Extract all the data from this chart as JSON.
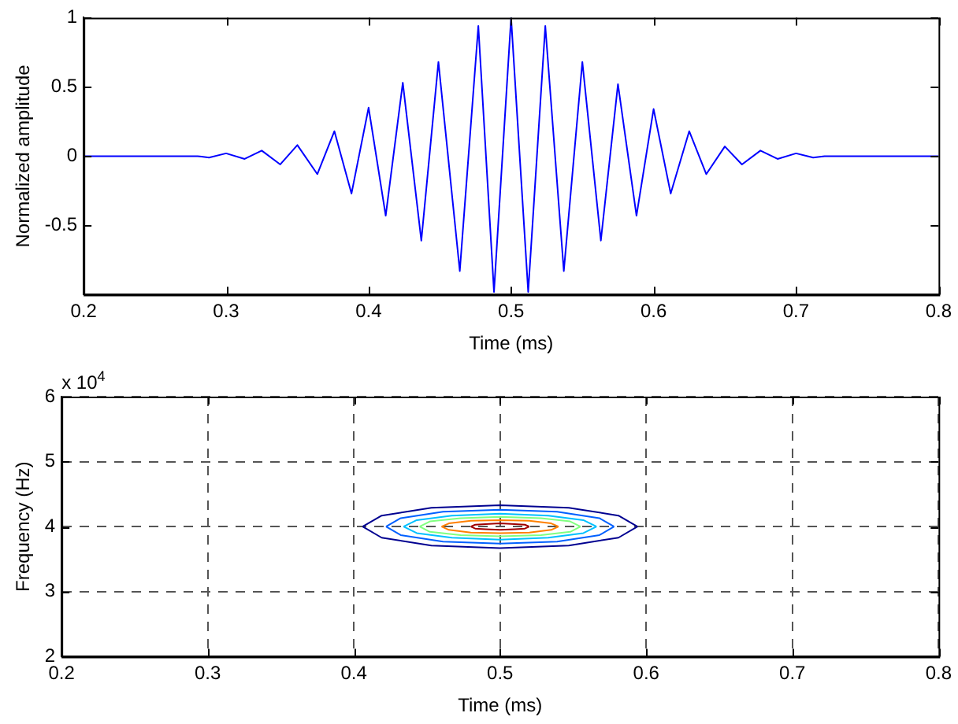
{
  "chart_data": [
    {
      "type": "line",
      "xlabel": "Time (ms)",
      "ylabel": "Normalized amplitude",
      "xlim": [
        0.2,
        0.8
      ],
      "xticks": [
        0.2,
        0.3,
        0.4,
        0.5,
        0.6,
        0.7,
        0.8
      ],
      "ylim": [
        -1,
        1
      ],
      "yticks": [
        -0.5,
        0,
        0.5,
        1
      ],
      "grid": false,
      "legend": false,
      "marker": "none",
      "line_style": "solid",
      "series": [
        {
          "color": "#0000ff",
          "x": [
            0.2,
            0.28,
            0.288,
            0.3,
            0.313,
            0.325,
            0.338,
            0.35,
            0.364,
            0.376,
            0.388,
            0.4,
            0.412,
            0.424,
            0.437,
            0.449,
            0.464,
            0.477,
            0.488,
            0.5,
            0.512,
            0.524,
            0.537,
            0.55,
            0.563,
            0.575,
            0.588,
            0.6,
            0.612,
            0.625,
            0.637,
            0.65,
            0.662,
            0.675,
            0.687,
            0.7,
            0.712,
            0.72,
            0.8
          ],
          "values": [
            0,
            0,
            -0.01,
            0.02,
            -0.02,
            0.04,
            -0.06,
            0.08,
            -0.13,
            0.18,
            -0.27,
            0.35,
            -0.43,
            0.53,
            -0.61,
            0.68,
            -0.83,
            0.94,
            -0.98,
            1,
            -0.98,
            0.94,
            -0.83,
            0.68,
            -0.61,
            0.52,
            -0.43,
            0.34,
            -0.27,
            0.18,
            -0.13,
            0.07,
            -0.06,
            0.04,
            -0.02,
            0.02,
            -0.01,
            0,
            0
          ]
        }
      ]
    },
    {
      "type": "line",
      "xlabel": "Time (ms)",
      "ylabel": "Frequency (Hz)",
      "annotations": [
        "x 10$^{4}$"
      ],
      "xlim": [
        0.2,
        0.8
      ],
      "xticks": [
        0.2,
        0.3,
        0.4,
        0.5,
        0.6,
        0.7,
        0.8
      ],
      "ylim": [
        2,
        6
      ],
      "yticks": [
        2,
        3,
        4,
        5,
        6
      ],
      "grid": true,
      "legend": false,
      "marker": "none",
      "line_style": "solid",
      "series": [
        {
          "color": "#000090",
          "x": [
            0.406,
            0.419,
            0.453,
            0.5,
            0.547,
            0.581,
            0.594
          ],
          "values": [
            4,
            4.17,
            4.29,
            4.33,
            4.29,
            4.17,
            4
          ]
        },
        {
          "color": "#000090",
          "x": [
            0.406,
            0.419,
            0.453,
            0.5,
            0.547,
            0.581,
            0.594
          ],
          "values": [
            4,
            3.83,
            3.71,
            3.67,
            3.71,
            3.83,
            4
          ]
        },
        {
          "color": "#0060ff",
          "x": [
            0.422,
            0.432,
            0.461,
            0.5,
            0.539,
            0.568,
            0.578
          ],
          "values": [
            4,
            4.13,
            4.23,
            4.26,
            4.23,
            4.13,
            4
          ]
        },
        {
          "color": "#0060ff",
          "x": [
            0.422,
            0.432,
            0.461,
            0.5,
            0.539,
            0.568,
            0.578
          ],
          "values": [
            4,
            3.87,
            3.77,
            3.74,
            3.77,
            3.87,
            4
          ]
        },
        {
          "color": "#00c0ff",
          "x": [
            0.434,
            0.443,
            0.467,
            0.5,
            0.533,
            0.557,
            0.566
          ],
          "values": [
            4,
            4.1,
            4.17,
            4.2,
            4.17,
            4.1,
            4
          ]
        },
        {
          "color": "#00c0ff",
          "x": [
            0.434,
            0.443,
            0.467,
            0.5,
            0.533,
            0.557,
            0.566
          ],
          "values": [
            4,
            3.9,
            3.83,
            3.8,
            3.83,
            3.9,
            4
          ]
        },
        {
          "color": "#80ff80",
          "x": [
            0.445,
            0.452,
            0.473,
            0.5,
            0.528,
            0.548,
            0.555
          ],
          "values": [
            4,
            4.08,
            4.13,
            4.15,
            4.13,
            4.08,
            4
          ]
        },
        {
          "color": "#80ff80",
          "x": [
            0.445,
            0.452,
            0.473,
            0.5,
            0.528,
            0.548,
            0.555
          ],
          "values": [
            4,
            3.92,
            3.87,
            3.85,
            3.87,
            3.92,
            4
          ]
        },
        {
          "color": "#ff8000",
          "x": [
            0.46,
            0.465,
            0.48,
            0.5,
            0.52,
            0.535,
            0.54
          ],
          "values": [
            4,
            4.05,
            4.09,
            4.1,
            4.09,
            4.05,
            4
          ]
        },
        {
          "color": "#ff8000",
          "x": [
            0.46,
            0.465,
            0.48,
            0.5,
            0.52,
            0.535,
            0.54
          ],
          "values": [
            4,
            3.95,
            3.91,
            3.9,
            3.91,
            3.95,
            4
          ]
        },
        {
          "color": "#a00000",
          "x": [
            0.48,
            0.483,
            0.49,
            0.5,
            0.51,
            0.517,
            0.52
          ],
          "values": [
            4,
            4.03,
            4.04,
            4.05,
            4.04,
            4.03,
            4
          ]
        },
        {
          "color": "#a00000",
          "x": [
            0.48,
            0.483,
            0.49,
            0.5,
            0.51,
            0.517,
            0.52
          ],
          "values": [
            4,
            3.97,
            3.96,
            3.95,
            3.96,
            3.97,
            4
          ]
        }
      ]
    }
  ]
}
